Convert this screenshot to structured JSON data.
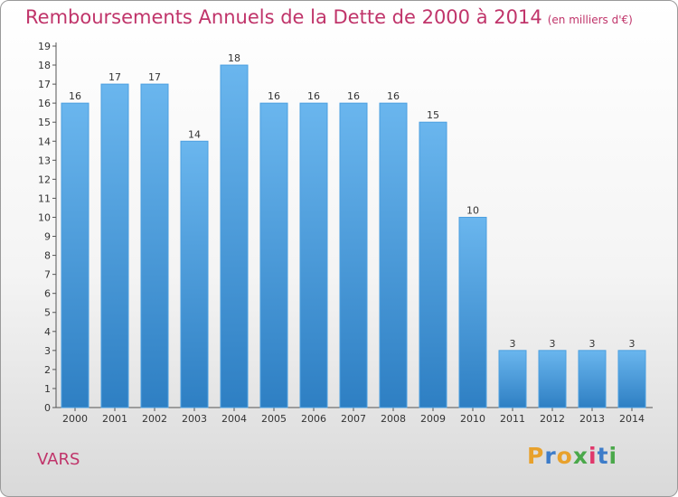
{
  "header": {
    "title": "Remboursements Annuels de la Dette de 2000 à 2014",
    "unit": "(en milliers d'€)"
  },
  "footer": {
    "place": "VARS",
    "logo": "Proxiti",
    "logo_colors": [
      "#e8a12c",
      "#3d7cc9",
      "#e8a12c",
      "#4aa84a",
      "#e0386b",
      "#3d7cc9",
      "#4aa84a"
    ]
  },
  "colors": {
    "bar": "#4b9fe0",
    "bar_light": "#6ab6ee",
    "bar_dark": "#2e7fc3"
  },
  "chart_data": {
    "type": "bar",
    "title": "Remboursements Annuels de la Dette de 2000 à 2014",
    "subtitle": "(en milliers d'€)",
    "categories": [
      "2000",
      "2001",
      "2002",
      "2003",
      "2004",
      "2005",
      "2006",
      "2007",
      "2008",
      "2009",
      "2010",
      "2011",
      "2012",
      "2013",
      "2014"
    ],
    "values": [
      16,
      17,
      17,
      14,
      18,
      16,
      16,
      16,
      16,
      15,
      10,
      3,
      3,
      3,
      3
    ],
    "y_ticks": [
      0,
      1,
      2,
      3,
      4,
      5,
      6,
      7,
      8,
      9,
      10,
      11,
      12,
      13,
      14,
      15,
      16,
      17,
      18,
      19
    ],
    "ylim": [
      0,
      19
    ],
    "grid": false,
    "legend": "none"
  }
}
